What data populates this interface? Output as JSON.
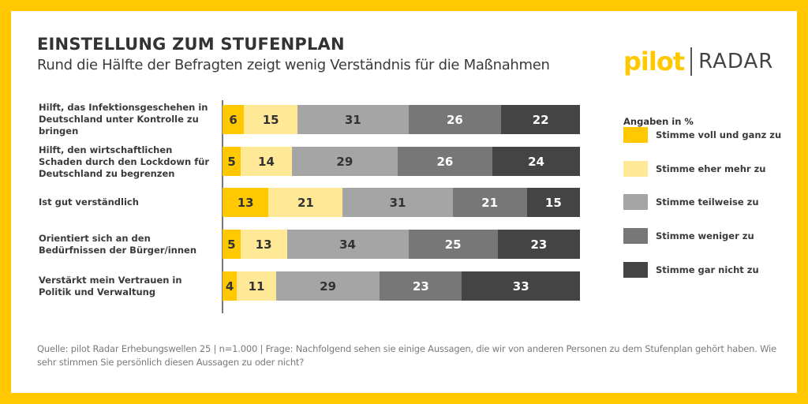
{
  "header": {
    "title": "EINSTELLUNG ZUM STUFENPLAN",
    "subtitle": "Rund die Hälfte der Befragten zeigt wenig Verständnis für die Maßnahmen"
  },
  "logo": {
    "brand": "pilot",
    "product": "RADAR"
  },
  "legend": {
    "title": "Angaben in %"
  },
  "footer": {
    "source": "Quelle: pilot Radar Erhebungswellen 25 | n=1.000 | Frage: Nachfolgend sehen sie einige Aussagen, die wir von anderen Personen zu dem Stufenplan gehört haben. Wie sehr stimmen Sie persönlich diesen Aussagen zu oder nicht?"
  },
  "colors": {
    "border": "#ffc800",
    "series": [
      "#ffc800",
      "#ffe896",
      "#a5a5a5",
      "#777777",
      "#444444"
    ],
    "label_text": [
      "#333333",
      "#333333",
      "#333333",
      "#ffffff",
      "#ffffff"
    ]
  },
  "chart_data": {
    "type": "bar",
    "orientation": "horizontal",
    "stacked": true,
    "title": "EINSTELLUNG ZUM STUFENPLAN",
    "subtitle": "Rund die Hälfte der Befragten zeigt wenig Verständnis für die Maßnahmen",
    "unit": "%",
    "categories": [
      "Hilft, das Infektionsgeschehen in Deutschland unter Kontrolle zu bringen",
      "Hilft, den wirtschaftlichen Schaden durch den Lockdown für Deutschland zu begrenzen",
      "Ist gut verständlich",
      "Orientiert sich an den Bedürfnissen der Bürger/innen",
      "Verstärkt mein Vertrauen in Politik und Verwaltung"
    ],
    "series": [
      {
        "name": "Stimme voll und ganz zu",
        "values": [
          6,
          5,
          13,
          5,
          4
        ]
      },
      {
        "name": "Stimme eher mehr zu",
        "values": [
          15,
          14,
          21,
          13,
          11
        ]
      },
      {
        "name": "Stimme teilweise zu",
        "values": [
          31,
          29,
          31,
          34,
          29
        ]
      },
      {
        "name": "Stimme weniger zu",
        "values": [
          26,
          26,
          21,
          25,
          23
        ]
      },
      {
        "name": "Stimme gar nicht zu",
        "values": [
          22,
          24,
          15,
          23,
          33
        ]
      }
    ],
    "xlim": [
      0,
      100
    ],
    "grid": false,
    "legend_position": "right"
  }
}
